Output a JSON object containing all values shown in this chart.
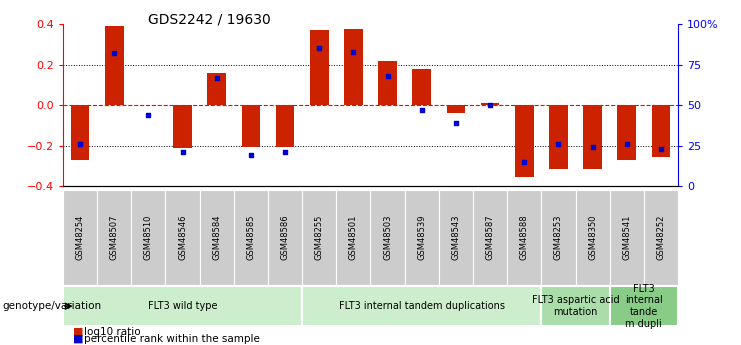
{
  "title": "GDS2242 / 19630",
  "samples": [
    "GSM48254",
    "GSM48507",
    "GSM48510",
    "GSM48546",
    "GSM48584",
    "GSM48585",
    "GSM48586",
    "GSM48255",
    "GSM48501",
    "GSM48503",
    "GSM48539",
    "GSM48543",
    "GSM48587",
    "GSM48588",
    "GSM48253",
    "GSM48350",
    "GSM48541",
    "GSM48252"
  ],
  "log10_ratio": [
    -0.27,
    0.39,
    0.0,
    -0.21,
    0.16,
    -0.205,
    -0.205,
    0.37,
    0.375,
    0.22,
    0.18,
    -0.04,
    0.01,
    -0.355,
    -0.315,
    -0.315,
    -0.27,
    -0.255
  ],
  "percentile_rank_pct": [
    26,
    82,
    44,
    21,
    67,
    19,
    21,
    85,
    83,
    68,
    47,
    39,
    50,
    15,
    26,
    24,
    26,
    23
  ],
  "groups": [
    {
      "label": "FLT3 wild type",
      "start": 0,
      "end": 7,
      "color": "#cceecc"
    },
    {
      "label": "FLT3 internal tandem duplications",
      "start": 7,
      "end": 14,
      "color": "#cceecc"
    },
    {
      "label": "FLT3 aspartic acid\nmutation",
      "start": 14,
      "end": 16,
      "color": "#aaddaa"
    },
    {
      "label": "FLT3\ninternal\ntande\nm dupli",
      "start": 16,
      "end": 18,
      "color": "#88cc88"
    }
  ],
  "bar_color": "#cc2200",
  "dot_color": "#0000cc",
  "left_yticks": [
    -0.4,
    -0.2,
    0.0,
    0.2,
    0.4
  ],
  "right_yticks": [
    0,
    25,
    50,
    75,
    100
  ],
  "right_yticklabels": [
    "0",
    "25",
    "50",
    "75",
    "100%"
  ],
  "legend_log10": "log10 ratio",
  "legend_pct": "percentile rank within the sample",
  "genotype_label": "genotype/variation"
}
